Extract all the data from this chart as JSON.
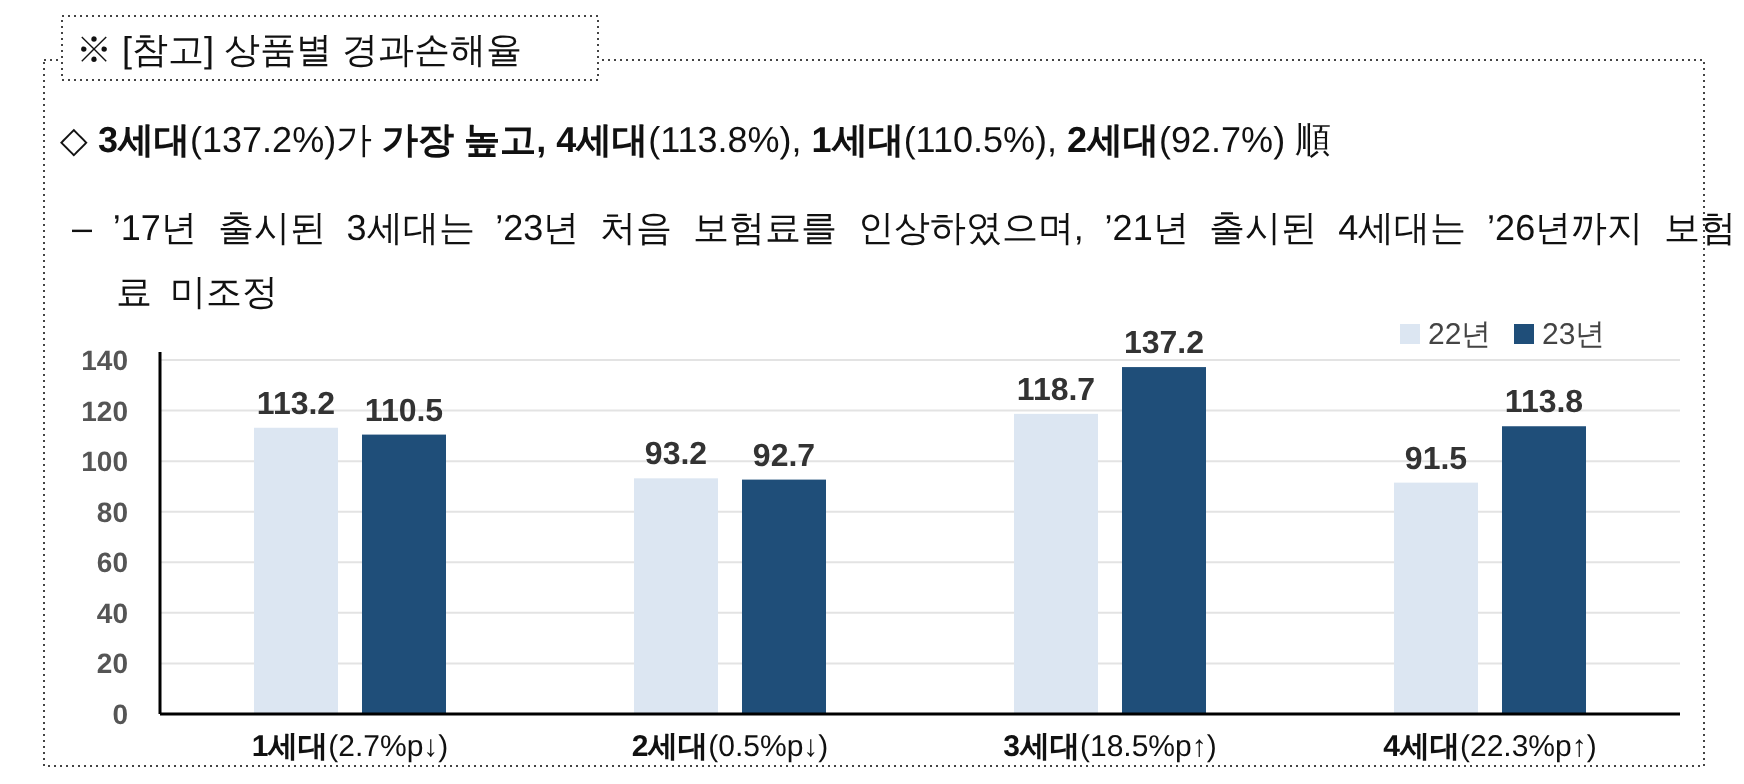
{
  "chart_data": {
    "type": "bar",
    "title": "※ [참고] 상품별 경과손해율",
    "subtitle": "◇ **3세대**(137.2%)가 **가장 높고, 4세대**(113.8%), **1세대**(110.5%), **2세대**(92.7%) 順",
    "annotations": [
      "– ’17년 출시된 3세대는 ’23년 처음 보험료를 인상하였으며, ’21년 출시된 4세대는 ’26년까지 보험료 미조정"
    ],
    "categories": [
      "**1세대**(2.7%p↓)",
      "**2세대**(0.5%p↓)",
      "**3세대**(18.5%p↑)",
      "**4세대**(22.3%p↑)"
    ],
    "series": [
      {
        "name": "22년",
        "color": "#dce6f2",
        "values": [
          113.2,
          93.2,
          118.7,
          91.5
        ]
      },
      {
        "name": "23년",
        "color": "#1f4e79",
        "values": [
          110.5,
          92.7,
          137.2,
          113.8
        ]
      }
    ],
    "ylim": [
      0,
      140
    ],
    "yticks": [
      0,
      20,
      40,
      60,
      80,
      100,
      120,
      140
    ],
    "grid": "y",
    "legend": "top right",
    "data_labels": true
  }
}
